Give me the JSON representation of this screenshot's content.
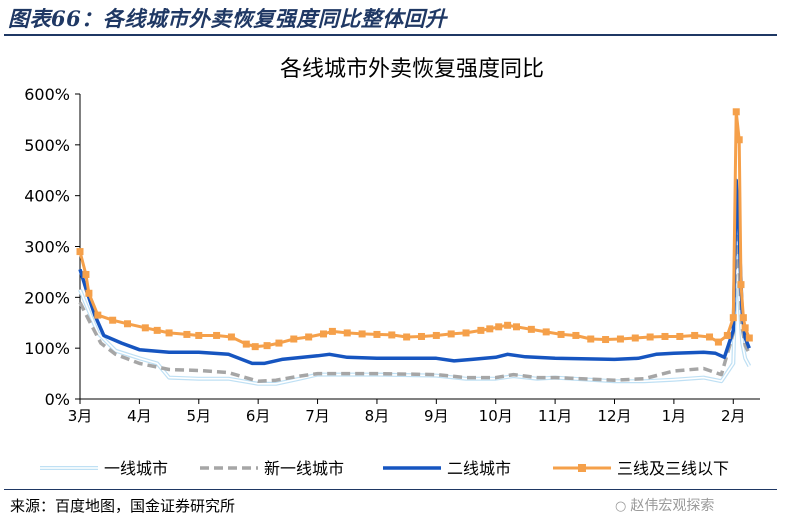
{
  "figure": {
    "title": "图表66：各线城市外卖恢复强度同比整体回升",
    "source": "来源：百度地图，国金证券研究所",
    "watermark": "赵伟宏观探索"
  },
  "chart_data": {
    "type": "line",
    "title": "各线城市外卖恢复强度同比",
    "xlabel": "",
    "ylabel": "",
    "ylim": [
      0,
      600
    ],
    "y_ticks": [
      "0%",
      "100%",
      "200%",
      "300%",
      "400%",
      "500%",
      "600%"
    ],
    "x_ticks": [
      "3月",
      "4月",
      "5月",
      "6月",
      "7月",
      "8月",
      "9月",
      "10月",
      "11月",
      "12月",
      "1月",
      "2月"
    ],
    "grid": false,
    "legend_position": "bottom",
    "series": [
      {
        "name": "一线城市",
        "color": "#bfe0f4",
        "style": "double-line",
        "points": [
          [
            0,
            215
          ],
          [
            0.3,
            130
          ],
          [
            0.6,
            95
          ],
          [
            1,
            80
          ],
          [
            1.3,
            70
          ],
          [
            1.5,
            42
          ],
          [
            2,
            40
          ],
          [
            2.5,
            40
          ],
          [
            3,
            30
          ],
          [
            3.3,
            30
          ],
          [
            3.7,
            40
          ],
          [
            4,
            48
          ],
          [
            5,
            48
          ],
          [
            6,
            46
          ],
          [
            6.5,
            40
          ],
          [
            7,
            40
          ],
          [
            7.3,
            45
          ],
          [
            7.7,
            40
          ],
          [
            8,
            42
          ],
          [
            9,
            35
          ],
          [
            9.5,
            35
          ],
          [
            10,
            38
          ],
          [
            10.5,
            42
          ],
          [
            10.8,
            35
          ],
          [
            11,
            70
          ],
          [
            11.05,
            280
          ],
          [
            11.1,
            200
          ],
          [
            11.15,
            110
          ],
          [
            11.2,
            80
          ],
          [
            11.27,
            65
          ]
        ]
      },
      {
        "name": "新一线城市",
        "color": "#a6a6a6",
        "style": "dashed",
        "points": [
          [
            0,
            190
          ],
          [
            0.15,
            155
          ],
          [
            0.35,
            110
          ],
          [
            0.6,
            88
          ],
          [
            1,
            70
          ],
          [
            1.5,
            58
          ],
          [
            2,
            56
          ],
          [
            2.5,
            52
          ],
          [
            3,
            35
          ],
          [
            3.3,
            37
          ],
          [
            3.7,
            45
          ],
          [
            4,
            50
          ],
          [
            5,
            50
          ],
          [
            6,
            48
          ],
          [
            6.5,
            42
          ],
          [
            7,
            42
          ],
          [
            7.3,
            48
          ],
          [
            7.7,
            42
          ],
          [
            8,
            42
          ],
          [
            9,
            37
          ],
          [
            9.5,
            40
          ],
          [
            10,
            55
          ],
          [
            10.5,
            60
          ],
          [
            10.8,
            48
          ],
          [
            11,
            130
          ],
          [
            11.05,
            320
          ],
          [
            11.1,
            250
          ],
          [
            11.15,
            140
          ],
          [
            11.2,
            105
          ],
          [
            11.27,
            90
          ]
        ]
      },
      {
        "name": "二线城市",
        "color": "#1655c0",
        "style": "solid",
        "points": [
          [
            0,
            255
          ],
          [
            0.12,
            210
          ],
          [
            0.25,
            165
          ],
          [
            0.4,
            125
          ],
          [
            0.7,
            110
          ],
          [
            1,
            97
          ],
          [
            1.5,
            92
          ],
          [
            2,
            92
          ],
          [
            2.5,
            88
          ],
          [
            2.9,
            70
          ],
          [
            3.1,
            70
          ],
          [
            3.4,
            78
          ],
          [
            4,
            85
          ],
          [
            4.2,
            88
          ],
          [
            4.5,
            82
          ],
          [
            5,
            80
          ],
          [
            6,
            80
          ],
          [
            6.3,
            75
          ],
          [
            6.6,
            78
          ],
          [
            7,
            82
          ],
          [
            7.2,
            88
          ],
          [
            7.5,
            83
          ],
          [
            8,
            80
          ],
          [
            9,
            78
          ],
          [
            9.4,
            80
          ],
          [
            9.7,
            88
          ],
          [
            10,
            90
          ],
          [
            10.5,
            92
          ],
          [
            10.7,
            90
          ],
          [
            10.85,
            82
          ],
          [
            11,
            135
          ],
          [
            11.05,
            430
          ],
          [
            11.1,
            320
          ],
          [
            11.15,
            170
          ],
          [
            11.2,
            120
          ],
          [
            11.27,
            100
          ]
        ]
      },
      {
        "name": "三线及三线以下",
        "color": "#f5a04a",
        "style": "solid-square-markers",
        "points": [
          [
            0,
            290
          ],
          [
            0.1,
            245
          ],
          [
            0.15,
            208
          ],
          [
            0.3,
            165
          ],
          [
            0.55,
            155
          ],
          [
            0.8,
            148
          ],
          [
            1.1,
            140
          ],
          [
            1.3,
            135
          ],
          [
            1.5,
            130
          ],
          [
            1.8,
            127
          ],
          [
            2,
            125
          ],
          [
            2.3,
            125
          ],
          [
            2.55,
            122
          ],
          [
            2.8,
            108
          ],
          [
            2.95,
            103
          ],
          [
            3.15,
            105
          ],
          [
            3.35,
            110
          ],
          [
            3.6,
            118
          ],
          [
            3.85,
            122
          ],
          [
            4.1,
            128
          ],
          [
            4.25,
            133
          ],
          [
            4.5,
            130
          ],
          [
            4.75,
            128
          ],
          [
            5,
            127
          ],
          [
            5.25,
            126
          ],
          [
            5.5,
            122
          ],
          [
            5.75,
            123
          ],
          [
            6,
            125
          ],
          [
            6.25,
            128
          ],
          [
            6.5,
            130
          ],
          [
            6.75,
            135
          ],
          [
            6.9,
            138
          ],
          [
            7.05,
            142
          ],
          [
            7.2,
            145
          ],
          [
            7.35,
            142
          ],
          [
            7.6,
            137
          ],
          [
            7.85,
            132
          ],
          [
            8.1,
            127
          ],
          [
            8.35,
            125
          ],
          [
            8.6,
            118
          ],
          [
            8.85,
            117
          ],
          [
            9.1,
            118
          ],
          [
            9.35,
            120
          ],
          [
            9.6,
            122
          ],
          [
            9.85,
            123
          ],
          [
            10.1,
            123
          ],
          [
            10.35,
            125
          ],
          [
            10.6,
            122
          ],
          [
            10.75,
            112
          ],
          [
            10.9,
            125
          ],
          [
            11.0,
            160
          ],
          [
            11.05,
            565
          ],
          [
            11.1,
            510
          ],
          [
            11.13,
            225
          ],
          [
            11.17,
            160
          ],
          [
            11.2,
            140
          ],
          [
            11.27,
            120
          ]
        ]
      }
    ]
  }
}
